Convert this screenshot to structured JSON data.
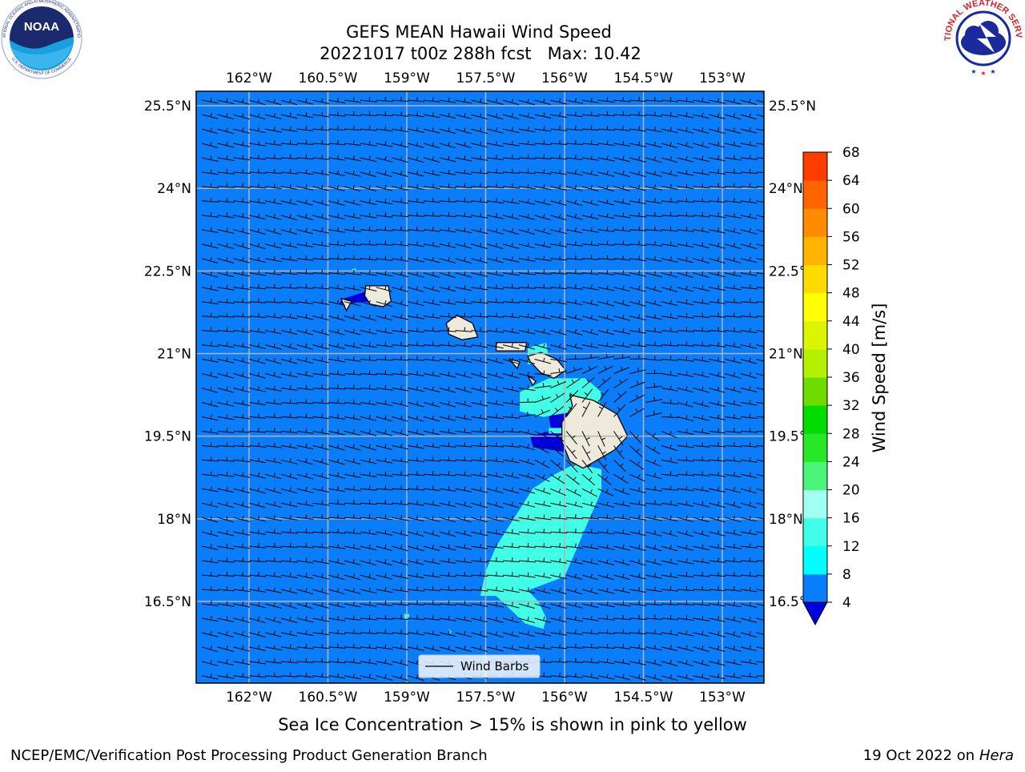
{
  "header": {
    "title_line1": "GEFS MEAN Hawaii Wind Speed",
    "title_line2": "20221017 t00z 288h fcst   Max: 10.42"
  },
  "logos": {
    "noaa_text": "NOAA",
    "noaa_ring_text": "NATIONAL OCEANIC AND ATMOSPHERIC ADMINISTRATION",
    "noaa_ring_text_bottom": "U.S. DEPARTMENT OF COMMERCE",
    "nws_ring_text": "NATIONAL WEATHER SERVICE"
  },
  "caption": "Sea Ice Concentration > 15% is shown in pink to yellow",
  "footer": {
    "left": "NCEP/EMC/Verification Post Processing Product Generation Branch",
    "right_prefix": "19 Oct 2022 on ",
    "right_machine": "Hera"
  },
  "colors": {
    "background_4_8": "#0a7dfa",
    "land": "#eeeadb",
    "grid": "#b4b4b4"
  },
  "chart_data": {
    "type": "heatmap",
    "title": "GEFS MEAN Hawaii Wind Speed",
    "subtitle": "20221017 t00z 288h fcst   Max: 10.42",
    "max_value": 10.42,
    "lon_ticks": [
      -162,
      -160.5,
      -159,
      -157.5,
      -156,
      -154.5,
      -153
    ],
    "lon_tick_labels": [
      "162°W",
      "160.5°W",
      "159°W",
      "157.5°W",
      "156°W",
      "154.5°W",
      "153°W"
    ],
    "lat_ticks": [
      25.5,
      24,
      22.5,
      21,
      19.5,
      18,
      16.5
    ],
    "lat_tick_labels": [
      "25.5°N",
      "24°N",
      "22.5°N",
      "21°N",
      "19.5°N",
      "18°N",
      "16.5°N"
    ],
    "lon_range": [
      -163,
      -152.2
    ],
    "lat_range": [
      15,
      25.75
    ],
    "grid": true,
    "legend": {
      "label": "Wind Barbs",
      "placement": "bottom-center"
    },
    "colorbar": {
      "label": "Wind Speed [m/s]",
      "levels": [
        4,
        8,
        12,
        16,
        20,
        24,
        28,
        32,
        36,
        40,
        44,
        48,
        52,
        56,
        60,
        64,
        68
      ],
      "colors": [
        "#0a7dfa",
        "#00ffff",
        "#40ffe6",
        "#a0fff0",
        "#4cf57a",
        "#28e628",
        "#00dc00",
        "#6edc00",
        "#b4f000",
        "#dcf500",
        "#ffff00",
        "#ffdc00",
        "#ffb400",
        "#ff8c00",
        "#ff6400",
        "#ff3c00",
        "#ff0000"
      ],
      "under_color": "#0000dc",
      "extend": "min"
    },
    "speed_regions": [
      {
        "level": "0-4 m/s",
        "color": "#0000dc",
        "lonlat": [
          [
            -160.2,
            22.0
          ],
          [
            -159.7,
            22.15
          ],
          [
            -159.6,
            21.95
          ],
          [
            -160.3,
            21.9
          ]
        ]
      },
      {
        "level": "0-4 m/s",
        "color": "#0000dc",
        "lonlat": [
          [
            -156.3,
            19.85
          ],
          [
            -155.95,
            20.05
          ],
          [
            -155.85,
            19.6
          ],
          [
            -155.9,
            19.2
          ],
          [
            -156.6,
            19.3
          ],
          [
            -156.65,
            19.5
          ],
          [
            -156.25,
            19.6
          ]
        ]
      },
      {
        "level": "8-12 m/s",
        "color": "#40ffe6",
        "lonlat": [
          [
            -156.7,
            20.8
          ],
          [
            -156.3,
            20.9
          ],
          [
            -156.35,
            21.2
          ],
          [
            -156.7,
            21.1
          ]
        ]
      },
      {
        "level": "8-12 m/s",
        "color": "#40ffe6",
        "lonlat": [
          [
            -156.85,
            20.3
          ],
          [
            -156.3,
            20.55
          ],
          [
            -155.6,
            20.55
          ],
          [
            -155.3,
            20.3
          ],
          [
            -155.35,
            20.0
          ],
          [
            -155.8,
            19.95
          ],
          [
            -156.4,
            19.85
          ],
          [
            -156.85,
            19.95
          ]
        ]
      },
      {
        "level": "8-12 m/s",
        "color": "#40ffe6",
        "lonlat": [
          [
            -156.3,
            19.65
          ],
          [
            -155.95,
            19.65
          ],
          [
            -155.95,
            19.55
          ],
          [
            -156.3,
            19.55
          ]
        ]
      },
      {
        "level": "8-12 m/s",
        "color": "#40ffe6",
        "lonlat": [
          [
            -157.3,
            16.6
          ],
          [
            -156.75,
            16.1
          ],
          [
            -156.4,
            16.0
          ],
          [
            -156.35,
            16.2
          ],
          [
            -156.5,
            16.5
          ],
          [
            -156.7,
            16.7
          ],
          [
            -156.0,
            16.95
          ],
          [
            -155.75,
            17.5
          ],
          [
            -155.55,
            17.95
          ],
          [
            -155.3,
            18.5
          ],
          [
            -155.3,
            18.9
          ],
          [
            -155.8,
            19.0
          ],
          [
            -156.2,
            18.8
          ],
          [
            -156.6,
            18.55
          ],
          [
            -157.0,
            17.95
          ],
          [
            -157.3,
            17.5
          ],
          [
            -157.5,
            17.05
          ],
          [
            -157.6,
            16.6
          ]
        ]
      },
      {
        "level": "8-12 m/s",
        "color": "#40ffe6",
        "lonlat": [
          [
            -159.05,
            16.27
          ],
          [
            -158.95,
            16.27
          ],
          [
            -158.97,
            16.15
          ],
          [
            -159.05,
            16.18
          ]
        ]
      },
      {
        "level": "8-12 m/s",
        "color": "#40ffe6",
        "lonlat": [
          [
            -158.2,
            16.0
          ],
          [
            -158.15,
            15.95
          ],
          [
            -158.2,
            15.9
          ]
        ]
      },
      {
        "level": "8-12 m/s",
        "color": "#40ffe6",
        "lonlat": [
          [
            -160.05,
            22.53
          ],
          [
            -159.95,
            22.55
          ],
          [
            -160.0,
            22.5
          ]
        ]
      }
    ],
    "islands": [
      {
        "name": "",
        "lonlat": [
          [
            -159.78,
            22.23
          ],
          [
            -159.35,
            22.23
          ],
          [
            -159.3,
            21.95
          ],
          [
            -159.45,
            21.85
          ],
          [
            -159.7,
            21.9
          ],
          [
            -159.8,
            22.05
          ]
        ]
      },
      {
        "name": "",
        "lonlat": [
          [
            -160.25,
            22.0
          ],
          [
            -160.05,
            21.95
          ],
          [
            -160.15,
            21.78
          ]
        ]
      },
      {
        "name": "",
        "lonlat": [
          [
            -158.25,
            21.55
          ],
          [
            -158.05,
            21.7
          ],
          [
            -157.75,
            21.55
          ],
          [
            -157.65,
            21.3
          ],
          [
            -157.95,
            21.25
          ],
          [
            -158.2,
            21.35
          ]
        ]
      },
      {
        "name": "",
        "lonlat": [
          [
            -157.3,
            21.2
          ],
          [
            -156.72,
            21.2
          ],
          [
            -156.75,
            21.05
          ],
          [
            -157.3,
            21.05
          ]
        ]
      },
      {
        "name": "",
        "lonlat": [
          [
            -157.05,
            20.9
          ],
          [
            -156.85,
            20.85
          ],
          [
            -156.9,
            20.73
          ]
        ]
      },
      {
        "name": "",
        "lonlat": [
          [
            -156.7,
            20.95
          ],
          [
            -156.45,
            21.02
          ],
          [
            -156.15,
            20.9
          ],
          [
            -155.98,
            20.7
          ],
          [
            -156.2,
            20.55
          ],
          [
            -156.45,
            20.65
          ],
          [
            -156.65,
            20.85
          ]
        ]
      },
      {
        "name": "",
        "lonlat": [
          [
            -156.7,
            20.6
          ],
          [
            -156.55,
            20.5
          ],
          [
            -156.6,
            20.42
          ]
        ]
      },
      {
        "name": "",
        "lonlat": [
          [
            -155.9,
            20.25
          ],
          [
            -155.45,
            20.15
          ],
          [
            -155.0,
            19.9
          ],
          [
            -154.8,
            19.5
          ],
          [
            -155.05,
            19.25
          ],
          [
            -155.5,
            19.0
          ],
          [
            -155.65,
            18.92
          ],
          [
            -155.9,
            19.05
          ],
          [
            -156.05,
            19.4
          ],
          [
            -156.05,
            19.75
          ],
          [
            -155.85,
            20.05
          ]
        ]
      }
    ],
    "barbs": {
      "rows": 41,
      "cols": 36,
      "lon_start": -162.9,
      "lon_end": -152.35,
      "lat_start": 25.6,
      "lat_end": 15.15
    }
  }
}
